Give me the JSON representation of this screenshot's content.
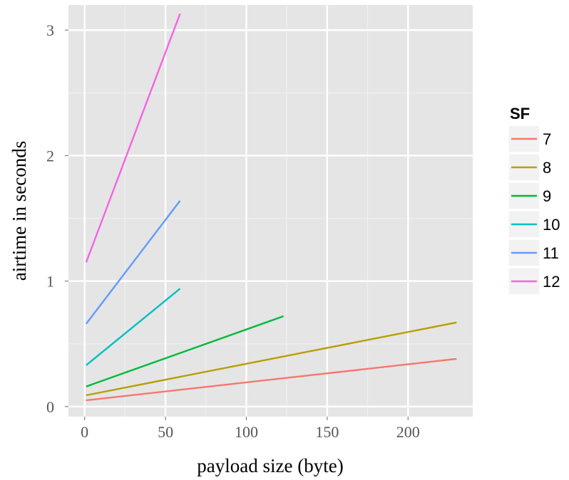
{
  "chart_data": {
    "type": "line",
    "xlabel": "payload size (byte)",
    "ylabel": "airtime in seconds",
    "xlim": [
      -10,
      240
    ],
    "ylim": [
      -0.08,
      3.2
    ],
    "xticks": [
      0,
      50,
      100,
      150,
      200
    ],
    "yticks": [
      0,
      1,
      2,
      3
    ],
    "grid": true,
    "legend": {
      "title": "SF",
      "placement": "right"
    },
    "series": [
      {
        "name": "7",
        "color": "#f8766d",
        "x": [
          1,
          230
        ],
        "y": [
          0.05,
          0.38
        ]
      },
      {
        "name": "8",
        "color": "#b79f00",
        "x": [
          1,
          230
        ],
        "y": [
          0.09,
          0.67
        ]
      },
      {
        "name": "9",
        "color": "#00ba38",
        "x": [
          1,
          123
        ],
        "y": [
          0.16,
          0.72
        ]
      },
      {
        "name": "10",
        "color": "#00bfc4",
        "x": [
          1,
          59
        ],
        "y": [
          0.33,
          0.94
        ]
      },
      {
        "name": "11",
        "color": "#619cff",
        "x": [
          1,
          59
        ],
        "y": [
          0.66,
          1.64
        ]
      },
      {
        "name": "12",
        "color": "#f564e3",
        "x": [
          1,
          59
        ],
        "y": [
          1.15,
          3.13
        ]
      }
    ]
  }
}
